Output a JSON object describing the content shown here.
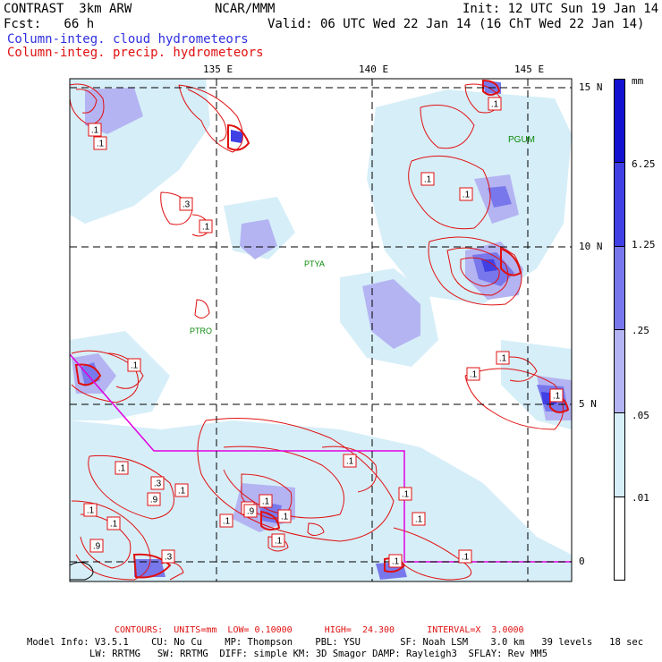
{
  "header": {
    "title": "CONTRAST  3km ARW",
    "center": "NCAR/MMM",
    "init": "Init: 12 UTC Sun 19 Jan 14",
    "fcst": "Fcst:   66 h",
    "valid": "Valid: 06 UTC Wed 22 Jan 14 (16 ChT Wed 22 Jan 14)",
    "field1": "Column-integ. cloud hydrometeors",
    "field2": "Column-integ. precip. hydrometeors"
  },
  "axes": {
    "lon_labels": [
      "135 E",
      "140 E",
      "145 E"
    ],
    "lat_labels": [
      "15 N",
      "10 N",
      "5 N",
      "0"
    ]
  },
  "stations": [
    "PGUM",
    "PTYA",
    "PTRO"
  ],
  "contour_labels": [
    ".1",
    ".1",
    ".3",
    ".1",
    ".1",
    ".1",
    ".1",
    ".1",
    ".1",
    ".1",
    ".1",
    ".1",
    ".1",
    ".1",
    ".1",
    ".3",
    ".9",
    ".1",
    ".1",
    ".3",
    ".9",
    ".1",
    ".9",
    ".1",
    ".3",
    ".1",
    ".1",
    ".1",
    ".1",
    ".1"
  ],
  "legend": {
    "unit": "mm",
    "values": [
      "6.25",
      "1.25",
      ".25",
      ".05",
      ".01"
    ],
    "colors": [
      "#1212d0",
      "#4040e4",
      "#7878ec",
      "#b4b4f2",
      "#d6eef8",
      "#ffffff"
    ]
  },
  "footer": {
    "contours": "CONTOURS:  UNITS=mm  LOW= 0.10000      HIGH=  24.300      INTERVAL=X  3.0000",
    "model1": "Model Info: V3.5.1    CU: No Cu    MP: Thompson    PBL: YSU       SF: Noah LSM    3.0 km   39 levels   18 sec",
    "model2": "LW: RRTMG   SW: RRTMG  DIFF: simple KM: 3D Smagor DAMP: Rayleigh3  SFLAY: Rev MM5"
  }
}
